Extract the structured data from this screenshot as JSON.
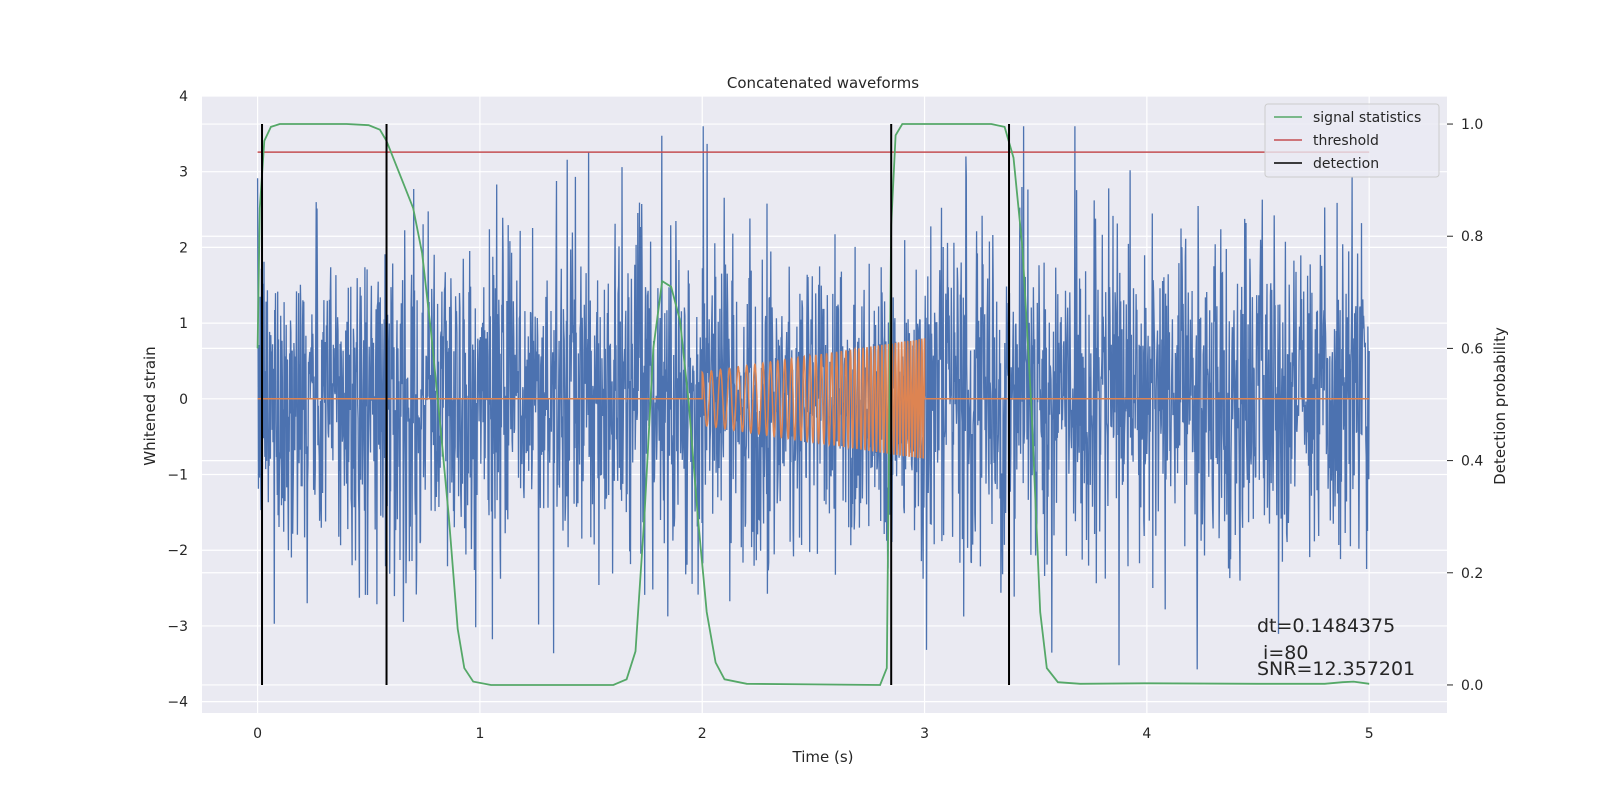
{
  "chart_data": {
    "type": "line",
    "title": "Concatenated waveforms",
    "xlabel": "Time (s)",
    "ylabel": "Whitened strain",
    "ylabel_right": "Detection probability",
    "xlim": [
      -0.25,
      5.35
    ],
    "ylim": [
      -4.15,
      4.0
    ],
    "ylim_right": [
      -0.05,
      1.05
    ],
    "x_ticks": [
      "0",
      "1",
      "2",
      "3",
      "4",
      "5"
    ],
    "y_ticks": [
      "4",
      "3",
      "2",
      "1",
      "0",
      "−1",
      "−2",
      "−3",
      "−4"
    ],
    "y_ticks_right": [
      "1.0",
      "0.8",
      "0.6",
      "0.4",
      "0.2",
      "0.0"
    ],
    "grid": true,
    "legend_position": "top-right",
    "series": [
      {
        "name": "signal statistics",
        "color": "#55a868",
        "axis": "right",
        "points": [
          [
            0.0,
            0.6
          ],
          [
            0.01,
            0.85
          ],
          [
            0.03,
            0.97
          ],
          [
            0.06,
            0.995
          ],
          [
            0.1,
            1.0
          ],
          [
            0.4,
            1.0
          ],
          [
            0.5,
            0.998
          ],
          [
            0.55,
            0.99
          ],
          [
            0.58,
            0.97
          ],
          [
            0.62,
            0.93
          ],
          [
            0.66,
            0.89
          ],
          [
            0.7,
            0.85
          ],
          [
            0.74,
            0.77
          ],
          [
            0.78,
            0.63
          ],
          [
            0.82,
            0.47
          ],
          [
            0.86,
            0.3
          ],
          [
            0.9,
            0.1
          ],
          [
            0.93,
            0.03
          ],
          [
            0.97,
            0.006
          ],
          [
            1.05,
            0.0
          ],
          [
            1.6,
            0.0
          ],
          [
            1.66,
            0.01
          ],
          [
            1.7,
            0.06
          ],
          [
            1.74,
            0.3
          ],
          [
            1.78,
            0.6
          ],
          [
            1.82,
            0.72
          ],
          [
            1.86,
            0.71
          ],
          [
            1.9,
            0.65
          ],
          [
            1.94,
            0.5
          ],
          [
            1.98,
            0.3
          ],
          [
            2.02,
            0.13
          ],
          [
            2.06,
            0.04
          ],
          [
            2.1,
            0.01
          ],
          [
            2.2,
            0.002
          ],
          [
            2.5,
            0.001
          ],
          [
            2.8,
            0.0
          ],
          [
            2.83,
            0.03
          ],
          [
            2.85,
            0.82
          ],
          [
            2.87,
            0.98
          ],
          [
            2.9,
            1.0
          ],
          [
            3.3,
            1.0
          ],
          [
            3.36,
            0.995
          ],
          [
            3.4,
            0.94
          ],
          [
            3.44,
            0.78
          ],
          [
            3.48,
            0.5
          ],
          [
            3.52,
            0.13
          ],
          [
            3.55,
            0.03
          ],
          [
            3.6,
            0.005
          ],
          [
            3.7,
            0.002
          ],
          [
            4.0,
            0.003
          ],
          [
            4.5,
            0.002
          ],
          [
            4.8,
            0.002
          ],
          [
            4.88,
            0.005
          ],
          [
            4.93,
            0.006
          ],
          [
            5.0,
            0.002
          ]
        ]
      },
      {
        "name": "threshold",
        "color": "#c44e52",
        "axis": "right",
        "points": [
          [
            0.0,
            0.95
          ],
          [
            5.0,
            0.95
          ]
        ]
      },
      {
        "name": "detection",
        "color": "#000000",
        "axis": "right",
        "times": [
          0.02,
          0.58,
          2.85,
          3.38
        ],
        "range": [
          0.0,
          1.0
        ]
      },
      {
        "color": "#4c72b0",
        "axis": "left",
        "kind": "noise",
        "x_range": [
          0.0,
          5.0
        ],
        "amplitude_range": [
          -3.8,
          3.6
        ]
      },
      {
        "color": "#dd8452",
        "axis": "left",
        "kind": "chirp",
        "x_range": [
          0.0,
          5.0
        ],
        "signal_window": [
          2.0,
          3.0
        ],
        "amplitude_start": 0.35,
        "amplitude_end": 0.8,
        "cycles": 44
      }
    ],
    "annotations": [
      "dt=0.1484375",
      " i=80",
      "SNR=12.357201"
    ]
  }
}
